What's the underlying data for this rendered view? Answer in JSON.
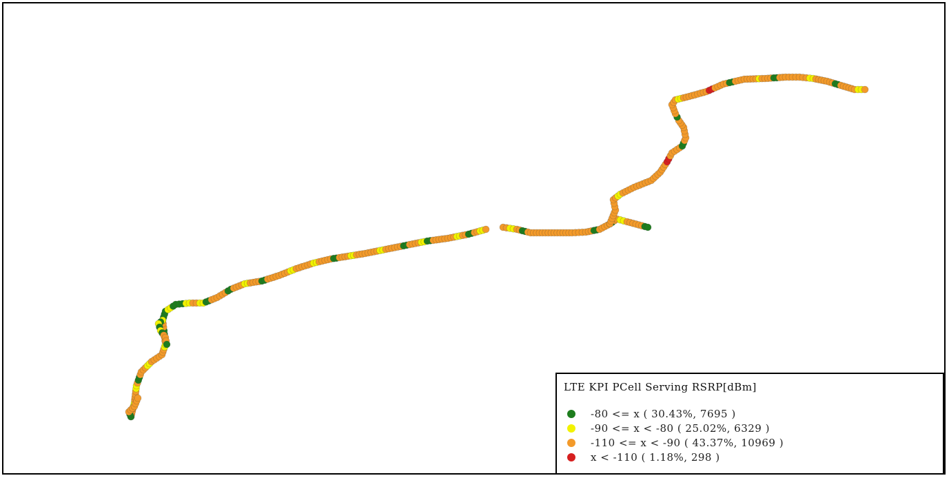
{
  "map": {
    "route_segments": [
      [
        "orange",
        "orange",
        "yellow",
        "orange",
        "orange",
        "yellow",
        "orange",
        "green",
        "orange",
        "orange",
        "yellow",
        "orange",
        "orange",
        "orange",
        "orange",
        "yellow",
        "orange",
        "green",
        "orange",
        "orange"
      ],
      [
        "green",
        "green",
        "yellow",
        "green",
        "green",
        "yellow",
        "orange",
        "yellow",
        "green",
        "orange",
        "orange",
        "orange",
        "green",
        "orange",
        "orange",
        "yellow",
        "orange",
        "orange",
        "green",
        "orange",
        "orange",
        "orange",
        "orange",
        "yellow",
        "orange",
        "orange",
        "orange",
        "yellow",
        "orange",
        "orange",
        "orange",
        "green",
        "orange",
        "orange",
        "yellow",
        "orange",
        "orange",
        "orange",
        "orange",
        "yellow",
        "orange",
        "orange",
        "orange",
        "green",
        "orange",
        "orange",
        "yellow",
        "green",
        "orange",
        "orange",
        "orange",
        "orange",
        "yellow",
        "orange",
        "green",
        "orange",
        "yellow",
        "orange"
      ],
      [
        "orange",
        "yellow",
        "orange",
        "green",
        "orange",
        "orange",
        "orange",
        "orange",
        "orange",
        "orange",
        "orange",
        "orange",
        "orange",
        "orange",
        "orange",
        "green",
        "orange",
        "orange",
        "green",
        "orange",
        "yellow",
        "orange",
        "orange",
        "orange",
        "green"
      ],
      [
        "orange",
        "orange",
        "orange",
        "orange",
        "orange",
        "yellow",
        "orange",
        "orange",
        "orange",
        "orange",
        "orange",
        "orange",
        "orange",
        "orange",
        "orange",
        "orange",
        "red",
        "orange",
        "orange",
        "orange",
        "green",
        "orange",
        "orange",
        "orange",
        "orange",
        "green",
        "orange",
        "orange",
        "orange",
        "yellow",
        "orange",
        "orange",
        "orange",
        "orange",
        "orange",
        "red",
        "orange",
        "orange",
        "orange",
        "green",
        "orange",
        "orange",
        "orange",
        "orange",
        "yellow",
        "orange",
        "orange",
        "green",
        "orange",
        "orange",
        "orange",
        "orange",
        "orange",
        "yellow",
        "orange",
        "orange",
        "orange",
        "orange",
        "green",
        "orange",
        "orange",
        "orange",
        "yellow",
        "orange"
      ],
      [
        "yellow",
        "green",
        "yellow",
        "yellow",
        "green",
        "yellow",
        "yellow",
        "green",
        "orange",
        "orange",
        "yellow",
        "orange",
        "green",
        "orange"
      ],
      [
        "green",
        "orange",
        "orange",
        "orange",
        "orange"
      ]
    ],
    "colors": {
      "green": "#1e7d1e",
      "yellow": "#f2f200",
      "orange": "#f39a2a",
      "red": "#d61f1f"
    }
  },
  "legend": {
    "title": "LTE KPI PCell Serving RSRP[dBm]",
    "entries": [
      {
        "label": "-80 <= x ( 30.43%, 7695 )",
        "color": "#1e7d1e"
      },
      {
        "label": "-90 <= x < -80 ( 25.02%, 6329 )",
        "color": "#f2f200"
      },
      {
        "label": "-110 <= x < -90 ( 43.37%, 10969 )",
        "color": "#f39a2a"
      },
      {
        "label": "x < -110 ( 1.18%, 298 )",
        "color": "#d61f1f"
      }
    ]
  }
}
